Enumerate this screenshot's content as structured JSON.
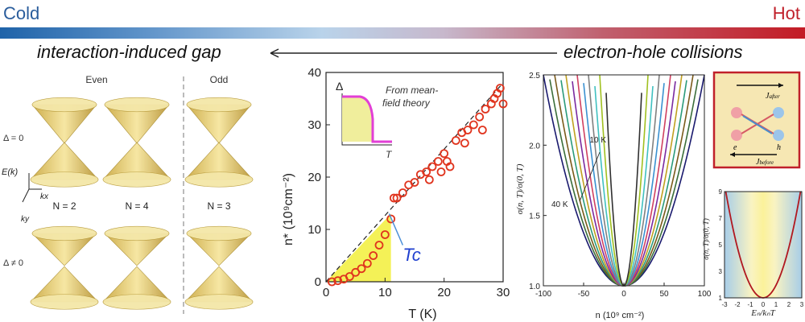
{
  "header": {
    "cold_label": "Cold",
    "hot_label": "Hot",
    "left_caption": "interaction-induced gap",
    "right_caption": "electron-hole collisions"
  },
  "colors": {
    "cold": "#1f63a9",
    "hot": "#c31b25",
    "marker": "#e0341e",
    "fill": "#f2ee3a",
    "mf_curve": "#e23fd6"
  },
  "cones_panel": {
    "col_even": "Even",
    "col_odd": "Odd",
    "delta_zero": "Δ = 0",
    "delta_nonzero": "Δ ≠ 0",
    "axis_E": "E(k)",
    "axis_kx": "kx",
    "axis_ky": "ky",
    "n_labels": [
      "N = 2",
      "N = 4",
      "N = 3"
    ]
  },
  "chart_data": [
    {
      "type": "scatter",
      "xlabel": "T (K)",
      "ylabel": "n* (10⁹cm⁻²)",
      "xlim": [
        0,
        30
      ],
      "ylim": [
        0,
        40
      ],
      "xticks": [
        0,
        10,
        20,
        30
      ],
      "yticks": [
        0,
        10,
        20,
        30,
        40
      ],
      "annotation": "Tc",
      "inset": {
        "text_line1": "From mean-",
        "text_line2": "field theory",
        "ylabel": "Δ",
        "xlabel": "T"
      },
      "points": [
        [
          1,
          0
        ],
        [
          2,
          0.2
        ],
        [
          3,
          0.5
        ],
        [
          4,
          1
        ],
        [
          5,
          1.8
        ],
        [
          6,
          2.5
        ],
        [
          7,
          3.5
        ],
        [
          8,
          5
        ],
        [
          9,
          7
        ],
        [
          10,
          9
        ],
        [
          11,
          12
        ],
        [
          11.5,
          16
        ],
        [
          12,
          16
        ],
        [
          13,
          17
        ],
        [
          14,
          18.5
        ],
        [
          15,
          19
        ],
        [
          16,
          20.5
        ],
        [
          17,
          21
        ],
        [
          17.5,
          19.5
        ],
        [
          18,
          22
        ],
        [
          19,
          23
        ],
        [
          19.5,
          21
        ],
        [
          20,
          24.5
        ],
        [
          20.5,
          23
        ],
        [
          21,
          22
        ],
        [
          22,
          27
        ],
        [
          23,
          28.5
        ],
        [
          23.5,
          26.5
        ],
        [
          24,
          29
        ],
        [
          25,
          30
        ],
        [
          26,
          31.5
        ],
        [
          26.5,
          29
        ],
        [
          27,
          33
        ],
        [
          28,
          34
        ],
        [
          28.5,
          35
        ],
        [
          29,
          36
        ],
        [
          29.5,
          37
        ],
        [
          30,
          34
        ]
      ]
    },
    {
      "type": "line",
      "xlabel": "n (10⁹ cm⁻²)",
      "ylabel": "σ(n, T)/σ(0, T)",
      "xlim": [
        -100,
        100
      ],
      "ylim": [
        1.0,
        2.5
      ],
      "xticks": [
        -100,
        -50,
        0,
        50,
        100
      ],
      "yticks": [
        1.0,
        1.5,
        2.0,
        2.5
      ],
      "labels": [
        "10 K",
        "40 K"
      ],
      "curve_colors": [
        "#1a1a6e",
        "#3a6e3a",
        "#7a5a1a",
        "#2a9a7a",
        "#c0a020",
        "#7a2aa0",
        "#d04060",
        "#3a90d0",
        "#808080",
        "#40c0c0",
        "#a0c020",
        "#303030"
      ]
    },
    {
      "type": "line",
      "xlabel": "Eₙ/kₙT",
      "ylabel": "σ(n, T)/σ(0, T)",
      "xlim": [
        -3,
        3
      ],
      "ylim": [
        1,
        9
      ],
      "xticks": [
        -3,
        -2,
        -1,
        0,
        1,
        2,
        3
      ],
      "yticks": [
        1,
        3,
        5,
        7,
        9
      ]
    }
  ],
  "schematic": {
    "j_after": "J",
    "j_after_sub": "after",
    "j_before": "J",
    "j_before_sub": "before",
    "electron": "e",
    "hole": "h"
  }
}
